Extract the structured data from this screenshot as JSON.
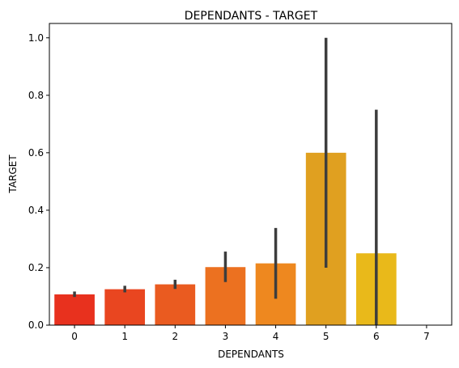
{
  "chart_data": {
    "type": "bar",
    "title": "DEPENDANTS - TARGET",
    "xlabel": "DEPENDANTS",
    "ylabel": "TARGET",
    "categories": [
      "0",
      "1",
      "2",
      "3",
      "4",
      "5",
      "6",
      "7"
    ],
    "values": [
      0.107,
      0.125,
      0.142,
      0.202,
      0.215,
      0.6,
      0.25,
      0.0
    ],
    "error_low": [
      0.098,
      0.114,
      0.126,
      0.15,
      0.092,
      0.2,
      0.0,
      0.0
    ],
    "error_high": [
      0.117,
      0.137,
      0.158,
      0.256,
      0.338,
      1.0,
      0.75,
      0.0
    ],
    "ylim": [
      0,
      1.05
    ],
    "yticks": [
      0.0,
      0.2,
      0.4,
      0.6,
      0.8,
      1.0
    ],
    "ytick_labels": [
      "0.0",
      "0.2",
      "0.4",
      "0.6",
      "0.8",
      "1.0"
    ],
    "colors": [
      "#e8311e",
      "#e94620",
      "#ea5b20",
      "#ec7120",
      "#ee881f",
      "#e0a020",
      "#e9b91a",
      "#f3d21a"
    ],
    "error_color": "#3d3d3d",
    "grid": false,
    "legend": "none"
  }
}
